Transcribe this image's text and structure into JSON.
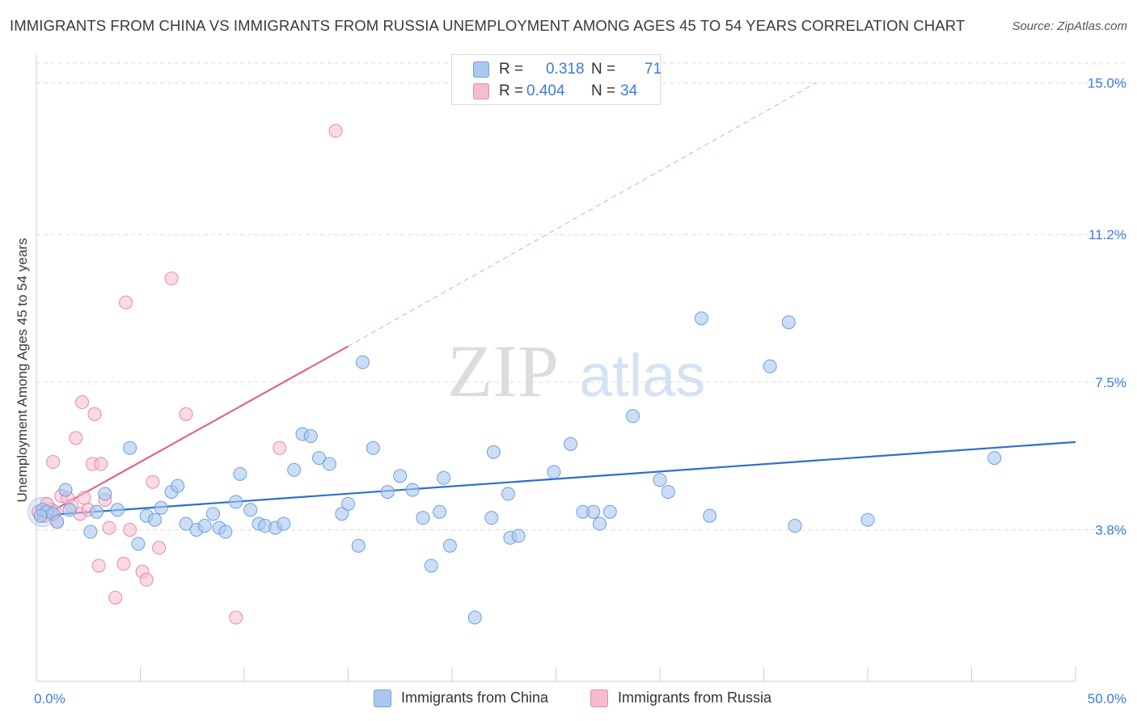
{
  "title": "IMMIGRANTS FROM CHINA VS IMMIGRANTS FROM RUSSIA UNEMPLOYMENT AMONG AGES 45 TO 54 YEARS CORRELATION CHART",
  "source": "Source: ZipAtlas.com",
  "watermark": {
    "zip": "ZIP",
    "atlas": "atlas"
  },
  "legend": {
    "china": {
      "r_label": "R =",
      "r_value": "0.318",
      "n_label": "N =",
      "n_value": "71"
    },
    "russia": {
      "r_label": "R =",
      "r_value": "0.404",
      "n_label": "N =",
      "n_value": "34"
    }
  },
  "colors": {
    "china_fill": "#a9c8f0",
    "china_stroke": "#6f9fdc",
    "china_line": "#2d6fcf",
    "russia_fill": "#f6bccd",
    "russia_stroke": "#e88aa8",
    "russia_line": "#e0668f",
    "tick_label": "#3b7dd8",
    "grid": "#dddddd"
  },
  "chart_data": {
    "type": "scatter",
    "title": "IMMIGRANTS FROM CHINA VS IMMIGRANTS FROM RUSSIA UNEMPLOYMENT AMONG AGES 45 TO 54 YEARS CORRELATION CHART",
    "xlabel": "",
    "ylabel": "Unemployment Among Ages 45 to 54 years",
    "xlim": [
      0,
      50
    ],
    "ylim": [
      0,
      15.5
    ],
    "x_tick_labels": [
      {
        "value": 0,
        "label": "0.0%"
      },
      {
        "value": 50,
        "label": "50.0%"
      }
    ],
    "y_ticks": [
      {
        "value": 3.8,
        "label": "3.8%"
      },
      {
        "value": 7.5,
        "label": "7.5%"
      },
      {
        "value": 11.2,
        "label": "11.2%"
      },
      {
        "value": 15.0,
        "label": "15.0%"
      }
    ],
    "x_minor_ticks": [
      0,
      5,
      10,
      15,
      20,
      25,
      30,
      35,
      40,
      45,
      50
    ],
    "series": [
      {
        "name": "Immigrants from China",
        "color": "#a9c8f0",
        "r": 0.318,
        "n": 71,
        "trend": {
          "x": [
            0,
            50
          ],
          "y": [
            4.15,
            6.0
          ],
          "dashed_extension": false
        },
        "points": [
          [
            0.3,
            4.3
          ],
          [
            0.5,
            4.25
          ],
          [
            0.8,
            4.2
          ],
          [
            1.0,
            4.0
          ],
          [
            1.4,
            4.8
          ],
          [
            1.6,
            4.3
          ],
          [
            2.6,
            3.75
          ],
          [
            2.9,
            4.25
          ],
          [
            3.3,
            4.7
          ],
          [
            3.9,
            4.3
          ],
          [
            4.5,
            5.85
          ],
          [
            4.9,
            3.45
          ],
          [
            5.3,
            4.15
          ],
          [
            5.7,
            4.05
          ],
          [
            6.0,
            4.35
          ],
          [
            6.5,
            4.75
          ],
          [
            6.8,
            4.9
          ],
          [
            7.2,
            3.95
          ],
          [
            7.7,
            3.8
          ],
          [
            8.1,
            3.9
          ],
          [
            8.5,
            4.2
          ],
          [
            8.8,
            3.85
          ],
          [
            9.1,
            3.75
          ],
          [
            9.6,
            4.5
          ],
          [
            9.8,
            5.2
          ],
          [
            10.3,
            4.3
          ],
          [
            10.7,
            3.95
          ],
          [
            11.0,
            3.9
          ],
          [
            11.5,
            3.85
          ],
          [
            11.9,
            3.95
          ],
          [
            12.4,
            5.3
          ],
          [
            12.8,
            6.2
          ],
          [
            13.2,
            6.15
          ],
          [
            13.6,
            5.6
          ],
          [
            14.1,
            5.45
          ],
          [
            14.7,
            4.2
          ],
          [
            15.0,
            4.45
          ],
          [
            15.5,
            3.4
          ],
          [
            15.7,
            8.0
          ],
          [
            16.2,
            5.85
          ],
          [
            16.9,
            4.75
          ],
          [
            17.5,
            5.15
          ],
          [
            18.1,
            4.8
          ],
          [
            18.6,
            4.1
          ],
          [
            19.0,
            2.9
          ],
          [
            19.4,
            4.25
          ],
          [
            19.6,
            5.1
          ],
          [
            19.9,
            3.4
          ],
          [
            21.1,
            1.6
          ],
          [
            21.9,
            4.1
          ],
          [
            22.0,
            5.75
          ],
          [
            22.7,
            4.7
          ],
          [
            22.8,
            3.6
          ],
          [
            23.2,
            3.65
          ],
          [
            24.9,
            5.25
          ],
          [
            25.7,
            5.95
          ],
          [
            26.3,
            4.25
          ],
          [
            26.8,
            4.25
          ],
          [
            27.1,
            3.95
          ],
          [
            27.6,
            4.25
          ],
          [
            28.7,
            6.65
          ],
          [
            30.0,
            5.05
          ],
          [
            30.4,
            4.75
          ],
          [
            32.0,
            9.1
          ],
          [
            32.4,
            4.15
          ],
          [
            35.3,
            7.9
          ],
          [
            36.2,
            9.0
          ],
          [
            36.5,
            3.9
          ],
          [
            40.0,
            4.05
          ],
          [
            46.1,
            5.6
          ],
          [
            0.2,
            4.15
          ]
        ]
      },
      {
        "name": "Immigrants from Russia",
        "color": "#f6bccd",
        "r": 0.404,
        "n": 34,
        "trend": {
          "x": [
            0,
            15
          ],
          "y": [
            4.05,
            8.4
          ],
          "dashed_extension": {
            "x": [
              15,
              37.5
            ],
            "y": [
              8.4,
              15.0
            ]
          }
        },
        "points": [
          [
            0.1,
            4.25
          ],
          [
            0.4,
            4.15
          ],
          [
            0.7,
            4.3
          ],
          [
            0.8,
            5.5
          ],
          [
            0.9,
            4.25
          ],
          [
            1.2,
            4.65
          ],
          [
            1.5,
            4.6
          ],
          [
            1.7,
            4.4
          ],
          [
            1.9,
            6.1
          ],
          [
            2.1,
            4.2
          ],
          [
            2.2,
            7.0
          ],
          [
            2.3,
            4.6
          ],
          [
            2.7,
            5.45
          ],
          [
            2.8,
            6.7
          ],
          [
            3.0,
            2.9
          ],
          [
            3.1,
            5.45
          ],
          [
            3.3,
            4.55
          ],
          [
            3.5,
            3.85
          ],
          [
            3.8,
            2.1
          ],
          [
            4.2,
            2.95
          ],
          [
            4.3,
            9.5
          ],
          [
            4.5,
            3.8
          ],
          [
            5.1,
            2.75
          ],
          [
            5.3,
            2.55
          ],
          [
            5.6,
            5.0
          ],
          [
            5.9,
            3.35
          ],
          [
            6.5,
            10.1
          ],
          [
            7.2,
            6.7
          ],
          [
            9.6,
            1.6
          ],
          [
            11.7,
            5.85
          ],
          [
            14.4,
            13.8
          ],
          [
            0.5,
            4.45
          ],
          [
            1.0,
            4.0
          ],
          [
            2.5,
            4.3
          ]
        ]
      }
    ],
    "legend": [
      "Immigrants from China",
      "Immigrants from Russia"
    ]
  }
}
